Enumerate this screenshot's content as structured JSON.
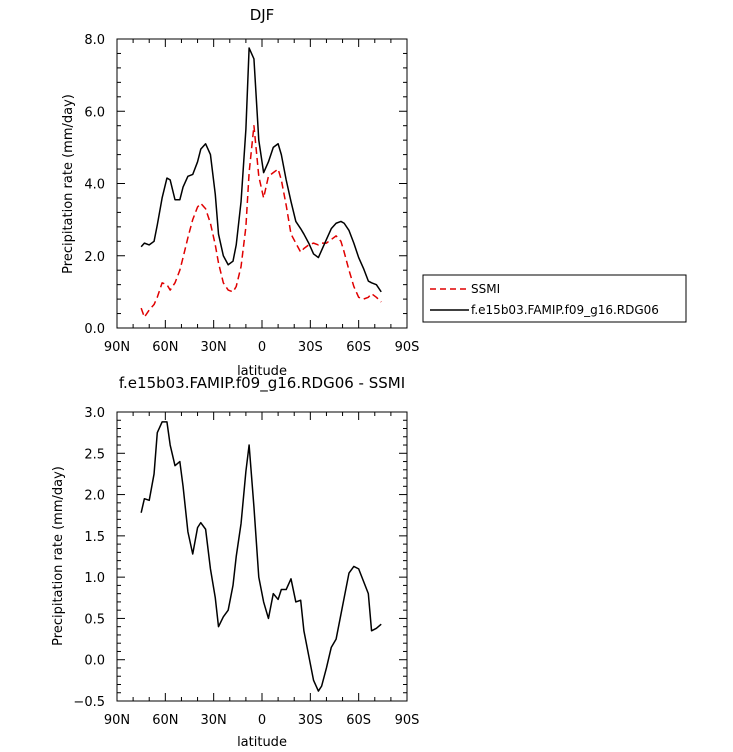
{
  "chart_data": [
    {
      "type": "line",
      "title": "DJF",
      "xlabel": "latitude",
      "ylabel": "Precipitation rate (mm/day)",
      "xlim": [
        -90,
        90
      ],
      "ylim": [
        0,
        8
      ],
      "x_ticks": [
        -90,
        -60,
        -30,
        0,
        30,
        60,
        90
      ],
      "x_tick_labels": [
        "90N",
        "60N",
        "30N",
        "0",
        "30S",
        "60S",
        "90S"
      ],
      "y_ticks": [
        0,
        2,
        4,
        6,
        8
      ],
      "y_tick_labels": [
        "0.0",
        "2.0",
        "4.0",
        "6.0",
        "8.0"
      ],
      "legend_position": "right",
      "series": [
        {
          "name": "SSMI",
          "color": "#e00000",
          "dash": "dashed",
          "x": [
            -75,
            -73,
            -70,
            -67,
            -65,
            -62,
            -59,
            -57,
            -54,
            -51,
            -49,
            -46,
            -43,
            -40,
            -38,
            -35,
            -32,
            -29,
            -27,
            -24,
            -21,
            -18,
            -16,
            -13,
            -10,
            -8,
            -5,
            -2,
            1,
            4,
            7,
            10,
            12,
            15,
            18,
            21,
            24,
            26,
            29,
            32,
            35,
            37,
            40,
            43,
            46,
            49,
            51,
            54,
            57,
            60,
            63,
            66,
            68,
            71,
            74
          ],
          "y": [
            0.55,
            0.3,
            0.5,
            0.65,
            0.85,
            1.25,
            1.2,
            1.05,
            1.25,
            1.6,
            1.95,
            2.5,
            3.0,
            3.35,
            3.45,
            3.3,
            2.9,
            2.3,
            1.8,
            1.25,
            1.05,
            1.0,
            1.15,
            1.7,
            2.8,
            4.3,
            5.6,
            4.2,
            3.6,
            4.2,
            4.3,
            4.4,
            4.1,
            3.4,
            2.6,
            2.35,
            2.1,
            2.2,
            2.3,
            2.35,
            2.3,
            2.35,
            2.35,
            2.45,
            2.55,
            2.4,
            2.1,
            1.6,
            1.15,
            0.85,
            0.8,
            0.85,
            0.95,
            0.85,
            0.72
          ]
        },
        {
          "name": "f.e15b03.FAMIP.f09_g16.RDG06",
          "color": "#000000",
          "dash": "solid",
          "x": [
            -75,
            -73,
            -70,
            -67,
            -65,
            -62,
            -59,
            -57,
            -54,
            -51,
            -49,
            -46,
            -43,
            -40,
            -38,
            -35,
            -32,
            -29,
            -27,
            -24,
            -21,
            -18,
            -16,
            -13,
            -10,
            -8,
            -5,
            -2,
            1,
            4,
            7,
            10,
            12,
            15,
            18,
            21,
            24,
            26,
            29,
            32,
            35,
            37,
            40,
            43,
            46,
            49,
            51,
            54,
            57,
            60,
            63,
            66,
            68,
            71,
            74
          ],
          "y": [
            2.25,
            2.35,
            2.3,
            2.4,
            2.85,
            3.6,
            4.15,
            4.1,
            3.55,
            3.55,
            3.9,
            4.2,
            4.25,
            4.6,
            4.95,
            5.1,
            4.8,
            3.7,
            2.6,
            2.0,
            1.75,
            1.85,
            2.3,
            3.5,
            5.5,
            7.75,
            7.45,
            5.2,
            4.3,
            4.6,
            5.0,
            5.1,
            4.8,
            4.1,
            3.5,
            2.95,
            2.75,
            2.6,
            2.35,
            2.05,
            1.95,
            2.15,
            2.45,
            2.75,
            2.9,
            2.95,
            2.9,
            2.7,
            2.35,
            1.95,
            1.65,
            1.3,
            1.25,
            1.2,
            1.0
          ]
        }
      ]
    },
    {
      "type": "line",
      "title": "f.e15b03.FAMIP.f09_g16.RDG06 - SSMI",
      "xlabel": "latitude",
      "ylabel": "Precipitation rate (mm/day)",
      "xlim": [
        -90,
        90
      ],
      "ylim": [
        -0.5,
        3.0
      ],
      "x_ticks": [
        -90,
        -60,
        -30,
        0,
        30,
        60,
        90
      ],
      "x_tick_labels": [
        "90N",
        "60N",
        "30N",
        "0",
        "30S",
        "60S",
        "90S"
      ],
      "y_ticks": [
        -0.5,
        0,
        0.5,
        1.0,
        1.5,
        2.0,
        2.5,
        3.0
      ],
      "y_tick_labels": [
        "−0.5",
        "0.0",
        "0.5",
        "1.0",
        "1.5",
        "2.0",
        "2.5",
        "3.0"
      ],
      "series": [
        {
          "color": "#000000",
          "dash": "solid",
          "x": [
            -75,
            -73,
            -70,
            -67,
            -65,
            -62,
            -59,
            -57,
            -54,
            -51,
            -49,
            -46,
            -43,
            -40,
            -38,
            -35,
            -32,
            -29,
            -27,
            -24,
            -21,
            -18,
            -16,
            -13,
            -10,
            -8,
            -5,
            -2,
            1,
            4,
            7,
            10,
            12,
            15,
            18,
            21,
            24,
            26,
            29,
            32,
            35,
            37,
            40,
            43,
            46,
            49,
            51,
            54,
            57,
            60,
            63,
            66,
            68,
            71,
            74
          ],
          "y": [
            1.78,
            1.95,
            1.93,
            2.25,
            2.75,
            2.88,
            2.88,
            2.6,
            2.35,
            2.4,
            2.1,
            1.55,
            1.28,
            1.6,
            1.66,
            1.58,
            1.1,
            0.75,
            0.4,
            0.52,
            0.6,
            0.9,
            1.25,
            1.65,
            2.28,
            2.6,
            1.85,
            1.0,
            0.7,
            0.5,
            0.8,
            0.73,
            0.85,
            0.85,
            0.98,
            0.7,
            0.72,
            0.35,
            0.05,
            -0.25,
            -0.38,
            -0.32,
            -0.1,
            0.15,
            0.25,
            0.55,
            0.75,
            1.05,
            1.13,
            1.1,
            0.95,
            0.8,
            0.35,
            0.38,
            0.43
          ]
        }
      ]
    }
  ]
}
